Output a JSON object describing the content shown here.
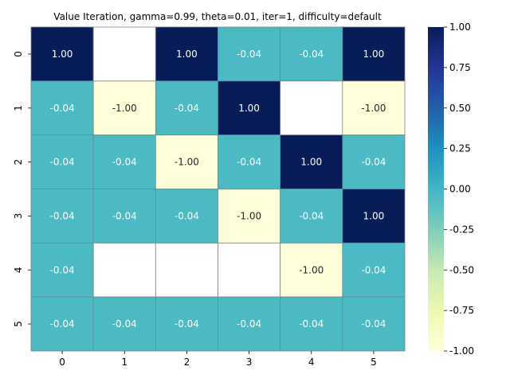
{
  "chart_data": {
    "type": "heatmap",
    "title": "Value Iteration, gamma=0.99, theta=0.01, iter=1, difficulty=default",
    "xlabel": "",
    "ylabel": "",
    "x_categories": [
      "0",
      "1",
      "2",
      "3",
      "4",
      "5"
    ],
    "y_categories": [
      "0",
      "1",
      "2",
      "3",
      "4",
      "5"
    ],
    "values": [
      [
        1.0,
        null,
        1.0,
        -0.04,
        -0.04,
        1.0
      ],
      [
        -0.04,
        -1.0,
        -0.04,
        1.0,
        null,
        -1.0
      ],
      [
        -0.04,
        -0.04,
        -1.0,
        -0.04,
        1.0,
        -0.04
      ],
      [
        -0.04,
        -0.04,
        -0.04,
        -1.0,
        -0.04,
        1.0
      ],
      [
        -0.04,
        null,
        null,
        null,
        -1.0,
        -0.04
      ],
      [
        -0.04,
        -0.04,
        -0.04,
        -0.04,
        -0.04,
        -0.04
      ]
    ],
    "cell_labels": [
      [
        "1.00",
        "",
        "1.00",
        "-0.04",
        "-0.04",
        "1.00"
      ],
      [
        "-0.04",
        "-1.00",
        "-0.04",
        "1.00",
        "",
        "-1.00"
      ],
      [
        "-0.04",
        "-0.04",
        "-1.00",
        "-0.04",
        "1.00",
        "-0.04"
      ],
      [
        "-0.04",
        "-0.04",
        "-0.04",
        "-1.00",
        "-0.04",
        "1.00"
      ],
      [
        "-0.04",
        "",
        "",
        "",
        "-1.00",
        "-0.04"
      ],
      [
        "-0.04",
        "-0.04",
        "-0.04",
        "-0.04",
        "-0.04",
        "-0.04"
      ]
    ],
    "colorbar": {
      "range": [
        -1.0,
        1.0
      ],
      "ticks": [
        "1.00",
        "0.75",
        "0.50",
        "0.25",
        "0.00",
        "-0.25",
        "-0.50",
        "-0.75",
        "-1.00"
      ],
      "tick_values": [
        1.0,
        0.75,
        0.5,
        0.25,
        0.0,
        -0.25,
        -0.5,
        -0.75,
        -1.0
      ],
      "colormap": "YlGnBu",
      "stops": [
        "#ffffd9",
        "#edf8b1",
        "#c7e9b4",
        "#7fcdbb",
        "#41b6c4",
        "#1d91c0",
        "#225ea8",
        "#253494",
        "#081d58"
      ]
    },
    "grid": true,
    "cell_border_color": "#808080",
    "legend": "colorbar-right"
  }
}
